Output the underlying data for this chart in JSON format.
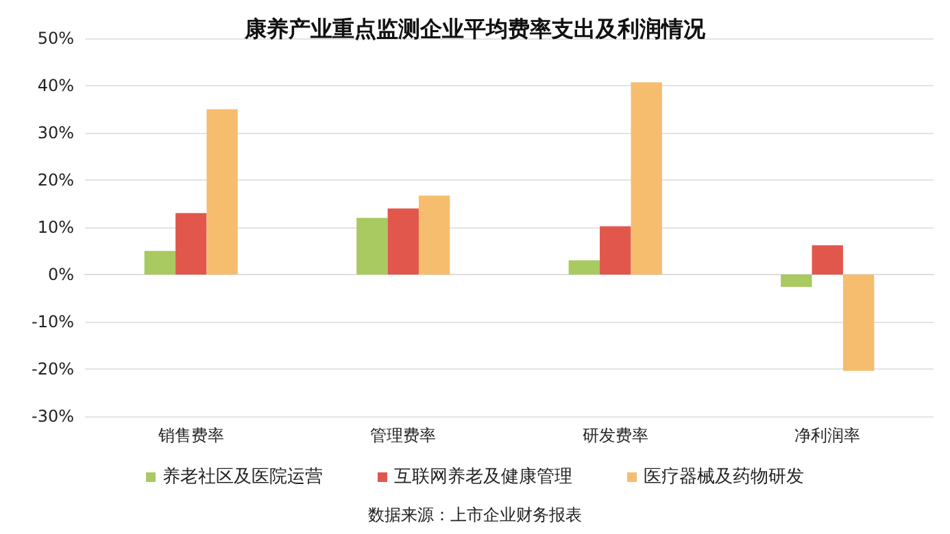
{
  "chart_data": {
    "type": "bar",
    "title": "康养产业重点监测企业平均费率支出及利润情况",
    "categories": [
      "销售费率",
      "管理费率",
      "研发费率",
      "净利润率"
    ],
    "series": [
      {
        "name": "养老社区及医院运营",
        "color": "#a9c961",
        "values": [
          5,
          12,
          3,
          -2.6
        ]
      },
      {
        "name": "互联网养老及健康管理",
        "color": "#e2574c",
        "values": [
          13,
          14,
          10.2,
          6.2
        ]
      },
      {
        "name": "医疗器械及药物研发",
        "color": "#f6bd6f",
        "values": [
          35,
          16.7,
          40.7,
          -20.4
        ]
      }
    ],
    "ylim": [
      -30,
      50
    ],
    "yticks": [
      {
        "value": -30,
        "label": "-30%"
      },
      {
        "value": -20,
        "label": "-20%"
      },
      {
        "value": -10,
        "label": "-10%"
      },
      {
        "value": 0,
        "label": "0%"
      },
      {
        "value": 10,
        "label": "10%"
      },
      {
        "value": 20,
        "label": "20%"
      },
      {
        "value": 30,
        "label": "30%"
      },
      {
        "value": 40,
        "label": "40%"
      },
      {
        "value": 50,
        "label": "50%"
      }
    ],
    "grid": "y",
    "legend": "bottom",
    "annotations": [
      "数据来源：上市企业财务报表"
    ]
  }
}
